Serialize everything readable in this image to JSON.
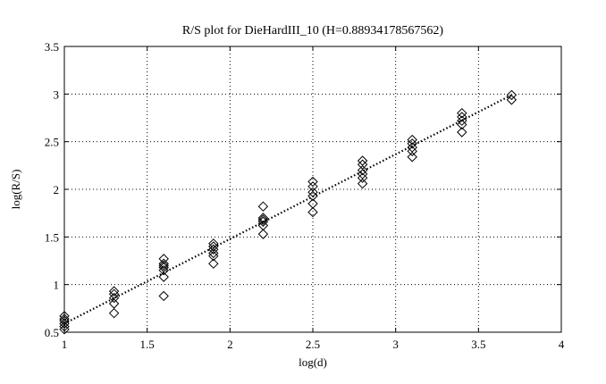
{
  "chart_data": {
    "type": "scatter",
    "title": "R/S plot for DieHardIII_10 (H=0.88934178567562)",
    "xlabel": "log(d)",
    "ylabel": "log(R/S)",
    "xlim": [
      1,
      4
    ],
    "ylim": [
      0.5,
      3.5
    ],
    "x_ticks": [
      1,
      1.5,
      2,
      2.5,
      3,
      3.5,
      4
    ],
    "x_tick_labels": [
      "1",
      "1.5",
      "2",
      "2.5",
      "3",
      "3.5",
      "4"
    ],
    "y_ticks": [
      0.5,
      1,
      1.5,
      2,
      2.5,
      3,
      3.5
    ],
    "y_tick_labels": [
      "0.5",
      "1",
      "1.5",
      "2",
      "2.5",
      "3",
      "3.5"
    ],
    "grid": true,
    "grid_style": "dotted",
    "marker": "diamond",
    "series": [
      {
        "points": [
          [
            1.0,
            0.53
          ],
          [
            1.0,
            0.56
          ],
          [
            1.0,
            0.59
          ],
          [
            1.0,
            0.62
          ],
          [
            1.0,
            0.64
          ],
          [
            1.0,
            0.67
          ],
          [
            1.3,
            0.7
          ],
          [
            1.3,
            0.8
          ],
          [
            1.3,
            0.86
          ],
          [
            1.3,
            0.9
          ],
          [
            1.3,
            0.93
          ],
          [
            1.6,
            0.88
          ],
          [
            1.6,
            1.08
          ],
          [
            1.6,
            1.15
          ],
          [
            1.6,
            1.18
          ],
          [
            1.6,
            1.2
          ],
          [
            1.6,
            1.22
          ],
          [
            1.6,
            1.27
          ],
          [
            1.9,
            1.22
          ],
          [
            1.9,
            1.3
          ],
          [
            1.9,
            1.33
          ],
          [
            1.9,
            1.37
          ],
          [
            1.9,
            1.4
          ],
          [
            1.9,
            1.43
          ],
          [
            2.2,
            1.53
          ],
          [
            2.2,
            1.62
          ],
          [
            2.2,
            1.66
          ],
          [
            2.2,
            1.68
          ],
          [
            2.2,
            1.7
          ],
          [
            2.2,
            1.82
          ],
          [
            2.5,
            1.76
          ],
          [
            2.5,
            1.85
          ],
          [
            2.5,
            1.93
          ],
          [
            2.5,
            1.97
          ],
          [
            2.5,
            2.03
          ],
          [
            2.5,
            2.08
          ],
          [
            2.8,
            2.06
          ],
          [
            2.8,
            2.12
          ],
          [
            2.8,
            2.16
          ],
          [
            2.8,
            2.2
          ],
          [
            2.8,
            2.26
          ],
          [
            2.8,
            2.3
          ],
          [
            3.1,
            2.34
          ],
          [
            3.1,
            2.4
          ],
          [
            3.1,
            2.44
          ],
          [
            3.1,
            2.48
          ],
          [
            3.1,
            2.52
          ],
          [
            3.4,
            2.6
          ],
          [
            3.4,
            2.68
          ],
          [
            3.4,
            2.72
          ],
          [
            3.4,
            2.76
          ],
          [
            3.4,
            2.8
          ],
          [
            3.7,
            2.94
          ],
          [
            3.7,
            2.99
          ]
        ]
      }
    ],
    "fit_line": {
      "style": "dotted",
      "x": [
        1.0,
        3.7
      ],
      "y": [
        0.59,
        2.99
      ]
    }
  }
}
